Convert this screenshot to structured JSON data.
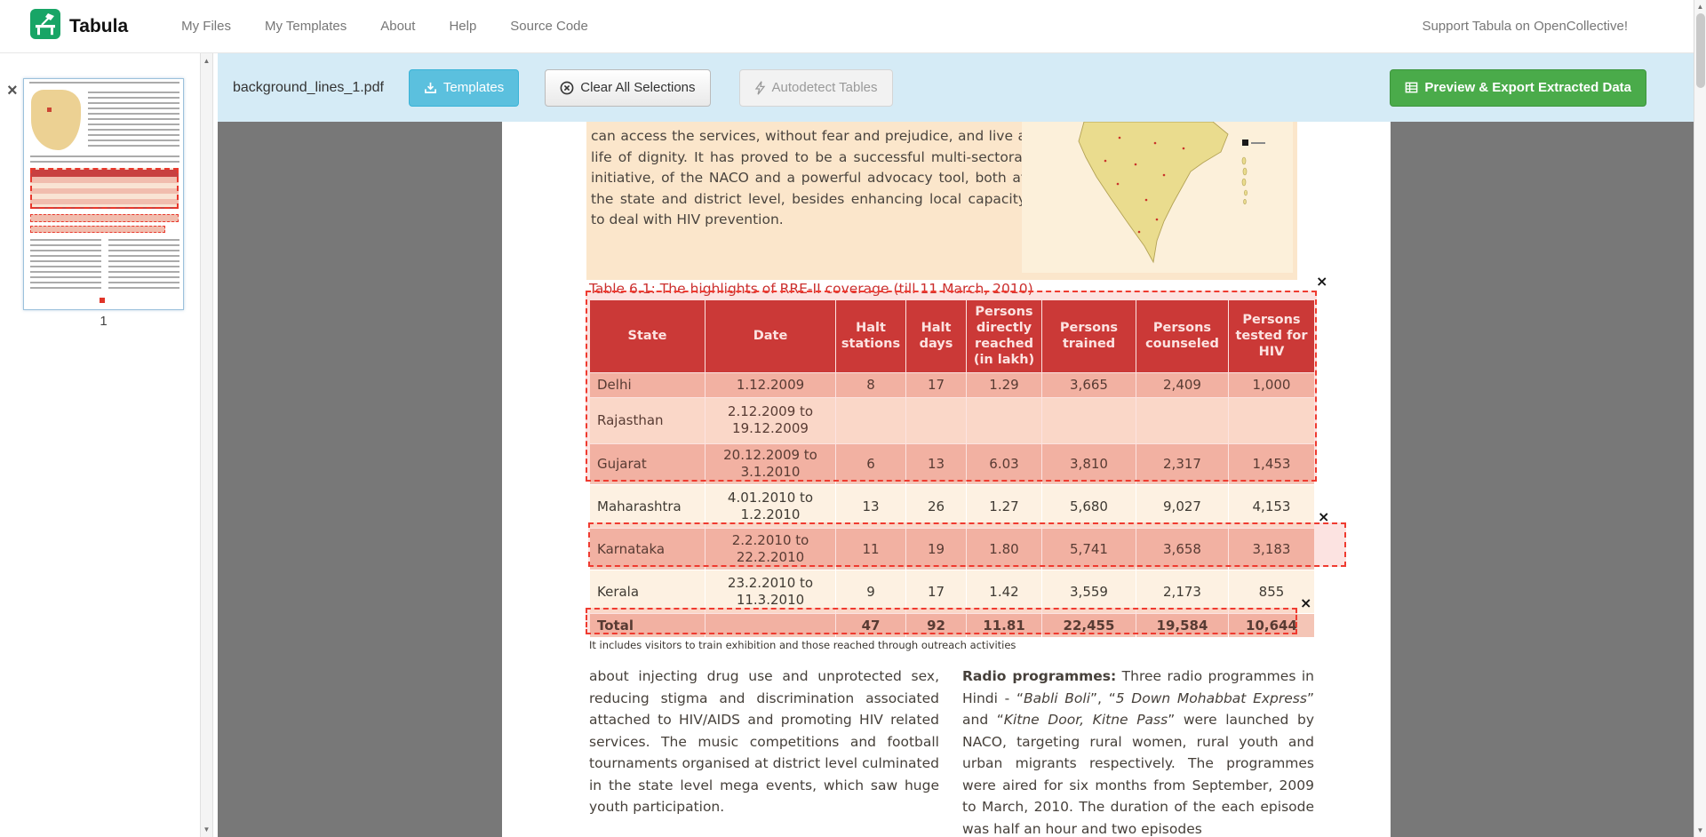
{
  "navbar": {
    "brand": "Tabula",
    "links": [
      {
        "label": "My Files"
      },
      {
        "label": "My Templates"
      },
      {
        "label": "About"
      },
      {
        "label": "Help"
      },
      {
        "label": "Source Code"
      }
    ],
    "support": "Support Tabula on OpenCollective!"
  },
  "toolbar": {
    "filename": "background_lines_1.pdf",
    "templates": "Templates",
    "clear": "Clear All Selections",
    "autodetect": "Autodetect Tables",
    "export": "Preview & Export Extracted Data"
  },
  "sidebar": {
    "page_number": "1"
  },
  "icons": {
    "close_thumbnail": "×",
    "remove_selection": "×",
    "scroll_up": "▲",
    "scroll_down": "▼"
  },
  "pdf": {
    "intro": "can access the services, without fear and prejudice, and live a life of dignity. It has proved to be a successful multi-sectoral initiative, of the NACO and a powerful advocacy tool, both at the state and district level, besides enhancing local capacity to deal with HIV prevention.",
    "table_title": "Table 6.1: The highlights of RRE-II coverage (till 11 March, 2010)",
    "table": {
      "headers": [
        "State",
        "Date",
        "Halt stations",
        "Halt days",
        "Persons directly reached (in lakh)",
        "Persons trained",
        "Persons counseled",
        "Persons tested for HIV"
      ],
      "rows": [
        [
          "Delhi",
          "1.12.2009",
          "8",
          "17",
          "1.29",
          "3,665",
          "2,409",
          "1,000"
        ],
        [
          "Rajasthan",
          "2.12.2009 to\n19.12.2009",
          "",
          "",
          "",
          "",
          "",
          ""
        ],
        [
          "Gujarat",
          "20.12.2009 to\n3.1.2010",
          "6",
          "13",
          "6.03",
          "3,810",
          "2,317",
          "1,453"
        ],
        [
          "Maharashtra",
          "4.01.2010 to\n1.2.2010",
          "13",
          "26",
          "1.27",
          "5,680",
          "9,027",
          "4,153"
        ],
        [
          "Karnataka",
          "2.2.2010 to\n22.2.2010",
          "11",
          "19",
          "1.80",
          "5,741",
          "3,658",
          "3,183"
        ],
        [
          "Kerala",
          "23.2.2010 to\n11.3.2010",
          "9",
          "17",
          "1.42",
          "3,559",
          "2,173",
          "855"
        ],
        [
          "Total",
          "",
          "47",
          "92",
          "11.81",
          "22,455",
          "19,584",
          "10,644"
        ]
      ]
    },
    "footnote": "It includes visitors to train exhibition and those reached through outreach activities",
    "columns": {
      "left": "about injecting drug use and unprotected sex, reducing stigma and discrimination associated attached to HIV/AIDS and promoting HIV related services. The music competitions and football tournaments organised at district level culminated in the state level mega events, which saw huge youth participation.",
      "right": {
        "seg0": "Radio programmes:",
        "seg1": " Three radio programmes in Hindi - “",
        "seg2": "Babli Boli",
        "seg3": "”, “",
        "seg4": "5 Down Mohabbat Express",
        "seg5": "” and “",
        "seg6": "Kitne Door, Kitne Pass",
        "seg7": "” were launched by NACO, targeting rural women, rural youth and urban migrants respectively. The programmes were aired for six months from September, 2009 to March, 2010. The duration of the each episode was half an hour and two episodes"
      }
    }
  },
  "colors": {
    "toolbar_bg": "#d5ebf6",
    "accent_info": "#5bc0de",
    "accent_success": "#4aab4a",
    "table_header_red": "#c63838",
    "selection_red": "#ef3b30",
    "page_peach": "#fbe6cb",
    "row_pink": "#f4c5b6",
    "row_cream": "#fdf1e2",
    "workspace_gray": "#787878"
  }
}
